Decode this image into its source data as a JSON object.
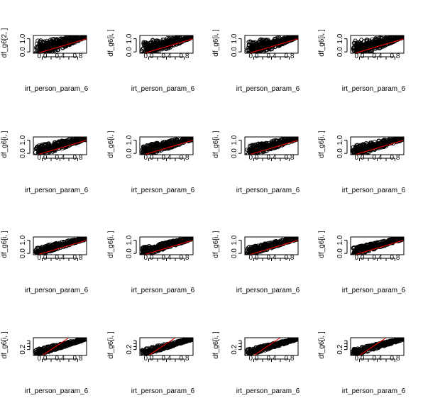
{
  "chart_data": {
    "type": "scatter",
    "layout": "4x4 grid of small multiples",
    "reference_line": {
      "slope": 1,
      "intercept": 0,
      "color": "#ff0000"
    },
    "point_color": "#000000",
    "panels": [
      {
        "row": 0,
        "col": 0,
        "xlabel": "irt_person_param_6",
        "ylabel": "df_g6[2, ]",
        "xlim": [
          -0.2,
          1.0
        ],
        "ylim": [
          -0.1,
          1.25
        ],
        "xticks": [
          "0.0",
          "0.4",
          "0.8"
        ],
        "yticks": [
          "0.0",
          "1.0"
        ],
        "cloud": {
          "lo": 0.05,
          "hi": 0.55,
          "upper": 1.22,
          "lower": 0.9
        }
      },
      {
        "row": 0,
        "col": 1,
        "xlabel": "irt_person_param_6",
        "ylabel": "df_g6[i, ]",
        "xlim": [
          -0.2,
          1.0
        ],
        "ylim": [
          -0.1,
          1.25
        ],
        "xticks": [
          "0.0",
          "0.4",
          "0.8"
        ],
        "yticks": [
          "0.0",
          "1.0"
        ],
        "cloud": {
          "lo": 0.05,
          "hi": 0.55,
          "upper": 1.22,
          "lower": 0.9
        }
      },
      {
        "row": 0,
        "col": 2,
        "xlabel": "irt_person_param_6",
        "ylabel": "df_g6[i, ]",
        "xlim": [
          -0.2,
          1.0
        ],
        "ylim": [
          -0.1,
          1.25
        ],
        "xticks": [
          "0.0",
          "0.4",
          "0.8"
        ],
        "yticks": [
          "0.0",
          "1.0"
        ],
        "cloud": {
          "lo": 0.05,
          "hi": 0.55,
          "upper": 1.22,
          "lower": 0.9
        }
      },
      {
        "row": 0,
        "col": 3,
        "xlabel": "irt_person_param_6",
        "ylabel": "df_g6[i, ]",
        "xlim": [
          -0.2,
          1.0
        ],
        "ylim": [
          -0.1,
          1.25
        ],
        "xticks": [
          "0.0",
          "0.4",
          "0.8"
        ],
        "yticks": [
          "0.0",
          "1.0"
        ],
        "cloud": {
          "lo": 0.05,
          "hi": 0.55,
          "upper": 1.22,
          "lower": 0.9
        }
      },
      {
        "row": 1,
        "col": 0,
        "xlabel": "irt_person_param_6",
        "ylabel": "df_g6[i, ]",
        "xlim": [
          -0.2,
          1.0
        ],
        "ylim": [
          -0.1,
          1.25
        ],
        "xticks": [
          "0.0",
          "0.4",
          "0.8"
        ],
        "yticks": [
          "0.0",
          "1.0"
        ],
        "cloud": {
          "lo": 0.1,
          "hi": 0.35,
          "upper": 1.15,
          "lower": 0.95
        }
      },
      {
        "row": 1,
        "col": 1,
        "xlabel": "irt_person_param_6",
        "ylabel": "df_g6[i, ]",
        "xlim": [
          -0.2,
          1.0
        ],
        "ylim": [
          -0.1,
          1.25
        ],
        "xticks": [
          "0.0",
          "0.4",
          "0.8"
        ],
        "yticks": [
          "0.0",
          "1.0"
        ],
        "cloud": {
          "lo": 0.1,
          "hi": 0.35,
          "upper": 1.15,
          "lower": 0.95
        }
      },
      {
        "row": 1,
        "col": 2,
        "xlabel": "irt_person_param_6",
        "ylabel": "df_g6[i, ]",
        "xlim": [
          -0.2,
          1.0
        ],
        "ylim": [
          -0.1,
          1.25
        ],
        "xticks": [
          "0.0",
          "0.4",
          "0.8"
        ],
        "yticks": [
          "0.0",
          "1.0"
        ],
        "cloud": {
          "lo": 0.1,
          "hi": 0.35,
          "upper": 1.15,
          "lower": 0.95
        }
      },
      {
        "row": 1,
        "col": 3,
        "xlabel": "irt_person_param_6",
        "ylabel": "df_g6[i, ]",
        "xlim": [
          -0.2,
          1.0
        ],
        "ylim": [
          -0.1,
          1.25
        ],
        "xticks": [
          "0.0",
          "0.4",
          "0.8"
        ],
        "yticks": [
          "0.0",
          "1.0"
        ],
        "cloud": {
          "lo": 0.1,
          "hi": 0.35,
          "upper": 1.15,
          "lower": 0.95
        }
      },
      {
        "row": 2,
        "col": 0,
        "xlabel": "irt_person_param_6",
        "ylabel": "df_g6[i, ]",
        "xlim": [
          -0.2,
          1.0
        ],
        "ylim": [
          -0.1,
          1.25
        ],
        "xticks": [
          "0.0",
          "0.4",
          "0.8"
        ],
        "yticks": [
          "0.0",
          "1.0"
        ],
        "cloud": {
          "lo": 0.08,
          "hi": 0.25,
          "upper": 1.05,
          "lower": 0.97
        }
      },
      {
        "row": 2,
        "col": 1,
        "xlabel": "irt_person_param_6",
        "ylabel": "df_g6[i, ]",
        "xlim": [
          -0.2,
          1.0
        ],
        "ylim": [
          -0.1,
          1.25
        ],
        "xticks": [
          "0.0",
          "0.4",
          "0.8"
        ],
        "yticks": [
          "0.0",
          "1.0"
        ],
        "cloud": {
          "lo": 0.08,
          "hi": 0.25,
          "upper": 1.05,
          "lower": 0.97
        }
      },
      {
        "row": 2,
        "col": 2,
        "xlabel": "irt_person_param_6",
        "ylabel": "df_g6[i, ]",
        "xlim": [
          -0.2,
          1.0
        ],
        "ylim": [
          -0.1,
          1.25
        ],
        "xticks": [
          "0.0",
          "0.4",
          "0.8"
        ],
        "yticks": [
          "0.0",
          "1.0"
        ],
        "cloud": {
          "lo": 0.08,
          "hi": 0.25,
          "upper": 1.05,
          "lower": 0.97
        }
      },
      {
        "row": 2,
        "col": 3,
        "xlabel": "irt_person_param_6",
        "ylabel": "df_g6[i, ]",
        "xlim": [
          -0.2,
          1.0
        ],
        "ylim": [
          -0.1,
          1.25
        ],
        "xticks": [
          "0.0",
          "0.4",
          "0.8"
        ],
        "yticks": [
          "0.0",
          "1.0"
        ],
        "cloud": {
          "lo": 0.08,
          "hi": 0.25,
          "upper": 1.05,
          "lower": 0.97
        }
      },
      {
        "row": 3,
        "col": 0,
        "xlabel": "irt_person_param_6",
        "ylabel": "df_g6[i, ]",
        "xlim": [
          -0.2,
          1.0
        ],
        "ylim": [
          0.0,
          0.6
        ],
        "xticks": [
          "0.0",
          "0.4",
          "0.8"
        ],
        "yticks": [
          "0.2"
        ],
        "ylabel_positions": [
          0.2
        ],
        "minor_yticks": [
          0.3,
          0.4,
          0.5
        ],
        "cloud": {
          "lo": 0.05,
          "hi": 0.2,
          "upper": 0.55,
          "lower": 0.5
        }
      },
      {
        "row": 3,
        "col": 1,
        "xlabel": "irt_person_param_6",
        "ylabel": "df_g6[i, ]",
        "xlim": [
          -0.2,
          1.0
        ],
        "ylim": [
          0.0,
          0.6
        ],
        "xticks": [
          "0.0",
          "0.4",
          "0.8"
        ],
        "yticks": [
          "0.2"
        ],
        "ylabel_positions": [
          0.2
        ],
        "minor_yticks": [
          0.3,
          0.4,
          0.5
        ],
        "cloud": {
          "lo": 0.05,
          "hi": 0.2,
          "upper": 0.55,
          "lower": 0.5
        }
      },
      {
        "row": 3,
        "col": 2,
        "xlabel": "irt_person_param_6",
        "ylabel": "df_g6[i, ]",
        "xlim": [
          -0.2,
          1.0
        ],
        "ylim": [
          0.0,
          0.6
        ],
        "xticks": [
          "0.0",
          "0.4",
          "0.8"
        ],
        "yticks": [
          "0.2"
        ],
        "ylabel_positions": [
          0.2
        ],
        "minor_yticks": [
          0.3,
          0.4,
          0.5
        ],
        "cloud": {
          "lo": 0.05,
          "hi": 0.2,
          "upper": 0.55,
          "lower": 0.5
        }
      },
      {
        "row": 3,
        "col": 3,
        "xlabel": "irt_person_param_6",
        "ylabel": "df_g6[i, ]",
        "xlim": [
          -0.2,
          1.0
        ],
        "ylim": [
          0.0,
          0.6
        ],
        "xticks": [
          "0.0",
          "0.4",
          "0.8"
        ],
        "yticks": [
          "0.2"
        ],
        "ylabel_positions": [
          0.2
        ],
        "minor_yticks": [
          0.3,
          0.4,
          0.5
        ],
        "cloud": {
          "lo": 0.05,
          "hi": 0.2,
          "upper": 0.55,
          "lower": 0.5
        }
      }
    ]
  }
}
